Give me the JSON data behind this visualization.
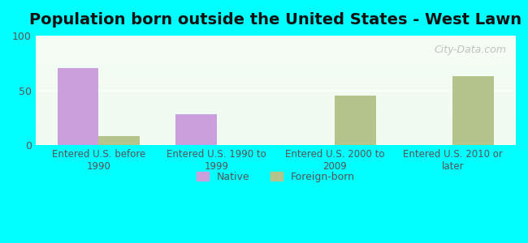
{
  "title": "Population born outside the United States - West Lawn",
  "categories": [
    "Entered U.S. before\n1990",
    "Entered U.S. 1990 to\n1999",
    "Entered U.S. 2000 to\n2009",
    "Entered U.S. 2010 or\nlater"
  ],
  "native_values": [
    70,
    28,
    0,
    0
  ],
  "foreign_values": [
    8,
    0,
    45,
    63
  ],
  "native_color": "#c9a0dc",
  "foreign_color": "#b5c48a",
  "ylim": [
    0,
    100
  ],
  "yticks": [
    0,
    50,
    100
  ],
  "background_top": "#e8f5e9",
  "background_bottom": "#f0faf0",
  "outer_background": "#00ffff",
  "bar_width": 0.35,
  "title_fontsize": 14,
  "watermark": "City-Data.com"
}
